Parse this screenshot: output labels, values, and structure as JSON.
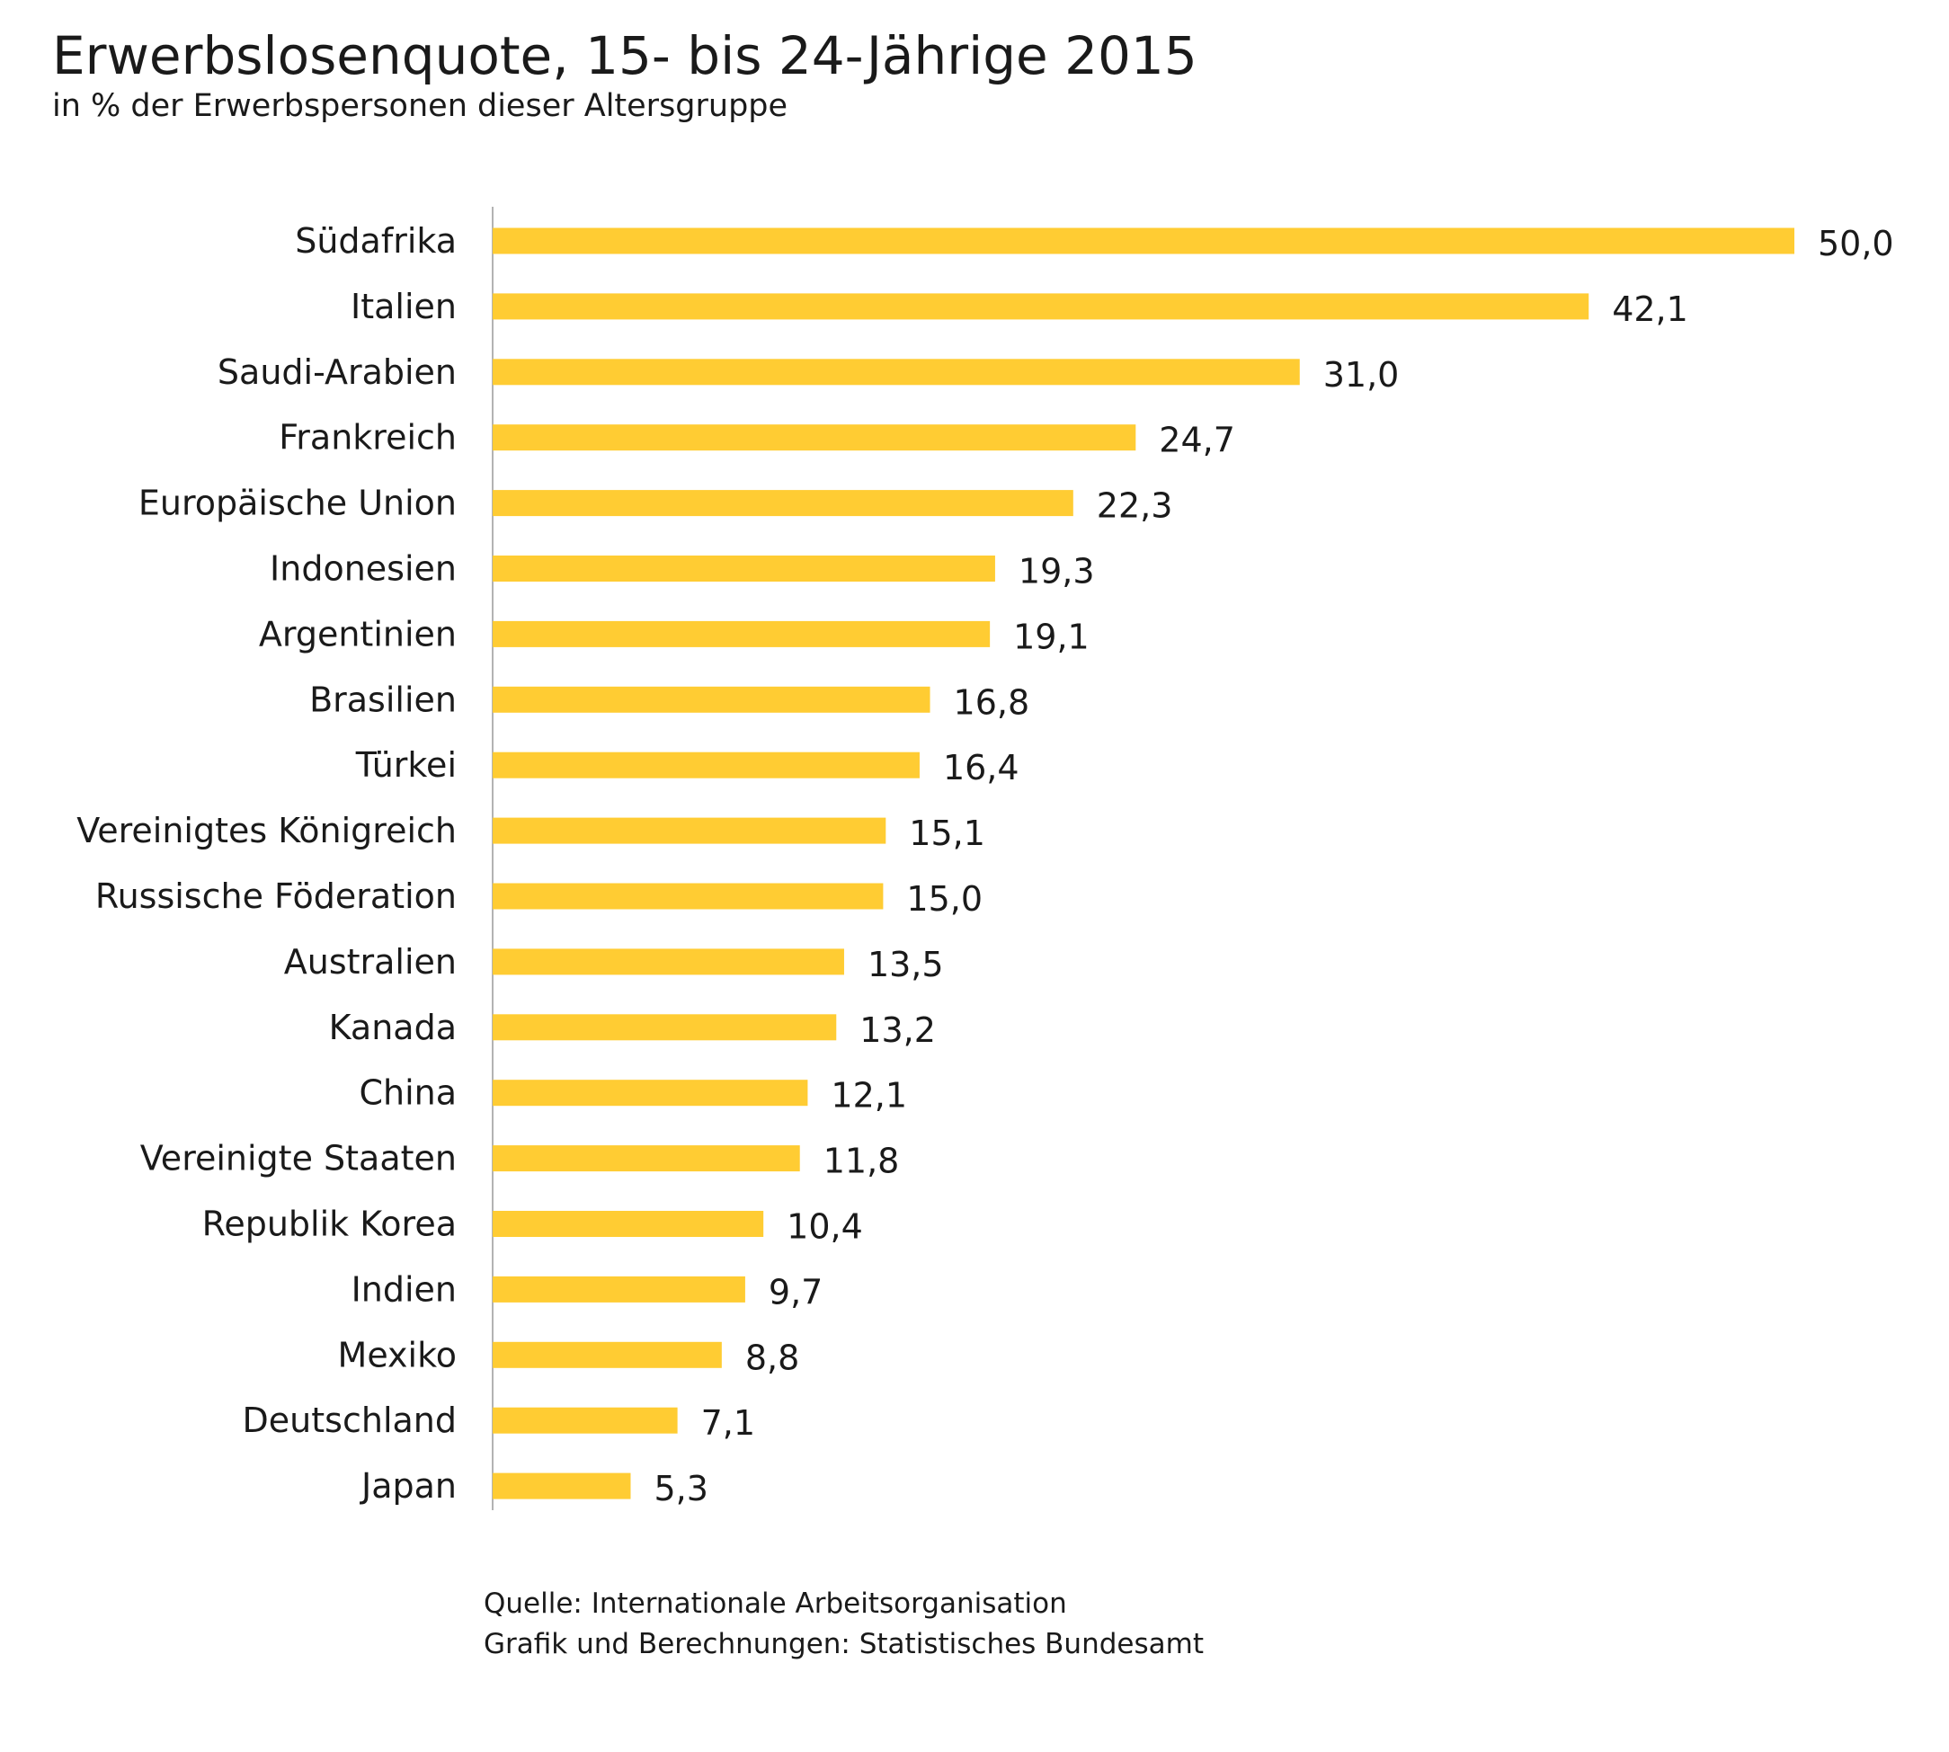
{
  "header": {
    "title": "Erwerbslosenquote, 15- bis 24-Jährige 2015",
    "subtitle": "in % der Erwerbspersonen dieser Altersgruppe"
  },
  "footer": {
    "source_line": "Quelle: Internationale Arbeitsorganisation",
    "credit_line": "Grafik und Berechnungen: Statistisches Bundesamt"
  },
  "chart_data": {
    "type": "bar",
    "orientation": "horizontal",
    "title": "Erwerbslosenquote, 15- bis 24-Jährige 2015",
    "subtitle": "in % der Erwerbspersonen dieser Altersgruppe",
    "xlabel": "",
    "ylabel": "",
    "xlim": [
      0,
      50
    ],
    "grid": false,
    "bar_color": "#FFCC33",
    "axis_color": "#b3b3b3",
    "categories": [
      "Südafrika",
      "Italien",
      "Saudi-Arabien",
      "Frankreich",
      "Europäische Union",
      "Indonesien",
      "Argentinien",
      "Brasilien",
      "Türkei",
      "Vereinigtes Königreich",
      "Russische Föderation",
      "Australien",
      "Kanada",
      "China",
      "Vereinigte Staaten",
      "Republik Korea",
      "Indien",
      "Mexiko",
      "Deutschland",
      "Japan"
    ],
    "values": [
      50.0,
      42.1,
      31.0,
      24.7,
      22.3,
      19.3,
      19.1,
      16.8,
      16.4,
      15.1,
      15.0,
      13.5,
      13.2,
      12.1,
      11.8,
      10.4,
      9.7,
      8.8,
      7.1,
      5.3
    ],
    "value_labels": [
      "50,0",
      "42,1",
      "31,0",
      "24,7",
      "22,3",
      "19,3",
      "19,1",
      "16,8",
      "16,4",
      "15,1",
      "15,0",
      "13,5",
      "13,2",
      "12,1",
      "11,8",
      "10,4",
      "9,7",
      "8,8",
      "7,1",
      "5,3"
    ]
  }
}
